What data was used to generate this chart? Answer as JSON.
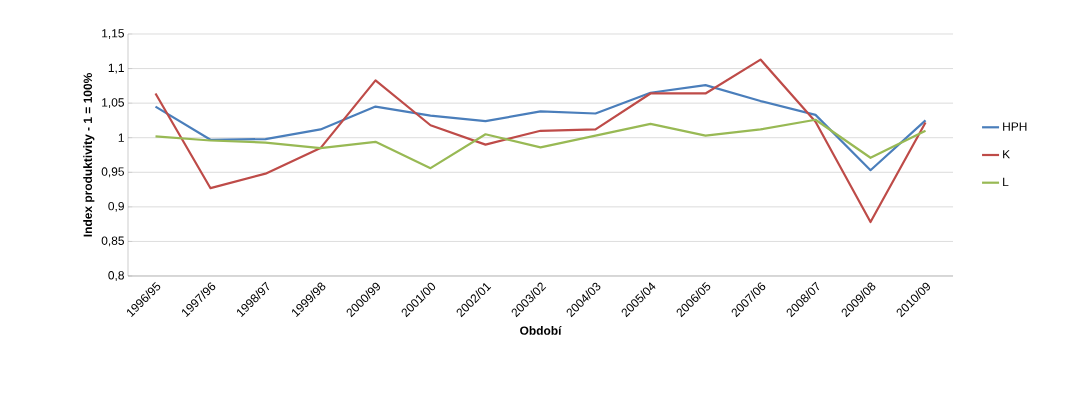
{
  "chart_data": {
    "type": "line",
    "xlabel": "Období",
    "ylabel": "Index produktivity  - 1 = 100%",
    "categories": [
      "1996/95",
      "1997/96",
      "1998/97",
      "1999/98",
      "2000/99",
      "2001/00",
      "2002/01",
      "2003/02",
      "2004/03",
      "2005/04",
      "2006/05",
      "2007/06",
      "2008/07",
      "2009/08",
      "2010/09"
    ],
    "series": [
      {
        "name": "HPH",
        "color": "#4a7ebb",
        "values": [
          1.045,
          0.997,
          0.998,
          1.012,
          1.045,
          1.032,
          1.024,
          1.038,
          1.035,
          1.065,
          1.076,
          1.053,
          1.033,
          0.953,
          1.025
        ]
      },
      {
        "name": "K",
        "color": "#be4b48",
        "values": [
          1.064,
          0.927,
          0.948,
          0.985,
          1.083,
          1.018,
          0.99,
          1.01,
          1.012,
          1.064,
          1.064,
          1.113,
          1.023,
          0.878,
          1.022
        ]
      },
      {
        "name": "L",
        "color": "#98b954",
        "values": [
          1.002,
          0.996,
          0.993,
          0.985,
          0.994,
          0.956,
          1.005,
          0.986,
          1.003,
          1.02,
          1.003,
          1.012,
          1.026,
          0.971,
          1.01
        ]
      }
    ],
    "ylim": [
      0.8,
      1.15
    ],
    "yticks": [
      {
        "value": 0.8,
        "label": "0,8"
      },
      {
        "value": 0.85,
        "label": "0,85"
      },
      {
        "value": 0.9,
        "label": "0,9"
      },
      {
        "value": 0.95,
        "label": "0,95"
      },
      {
        "value": 1,
        "label": "1"
      },
      {
        "value": 1.05,
        "label": "1,05"
      },
      {
        "value": 1.1,
        "label": "1,1"
      },
      {
        "value": 1.15,
        "label": "1,15"
      }
    ],
    "grid": "y",
    "legend": "right",
    "marker": "none",
    "line_style": "solid"
  }
}
